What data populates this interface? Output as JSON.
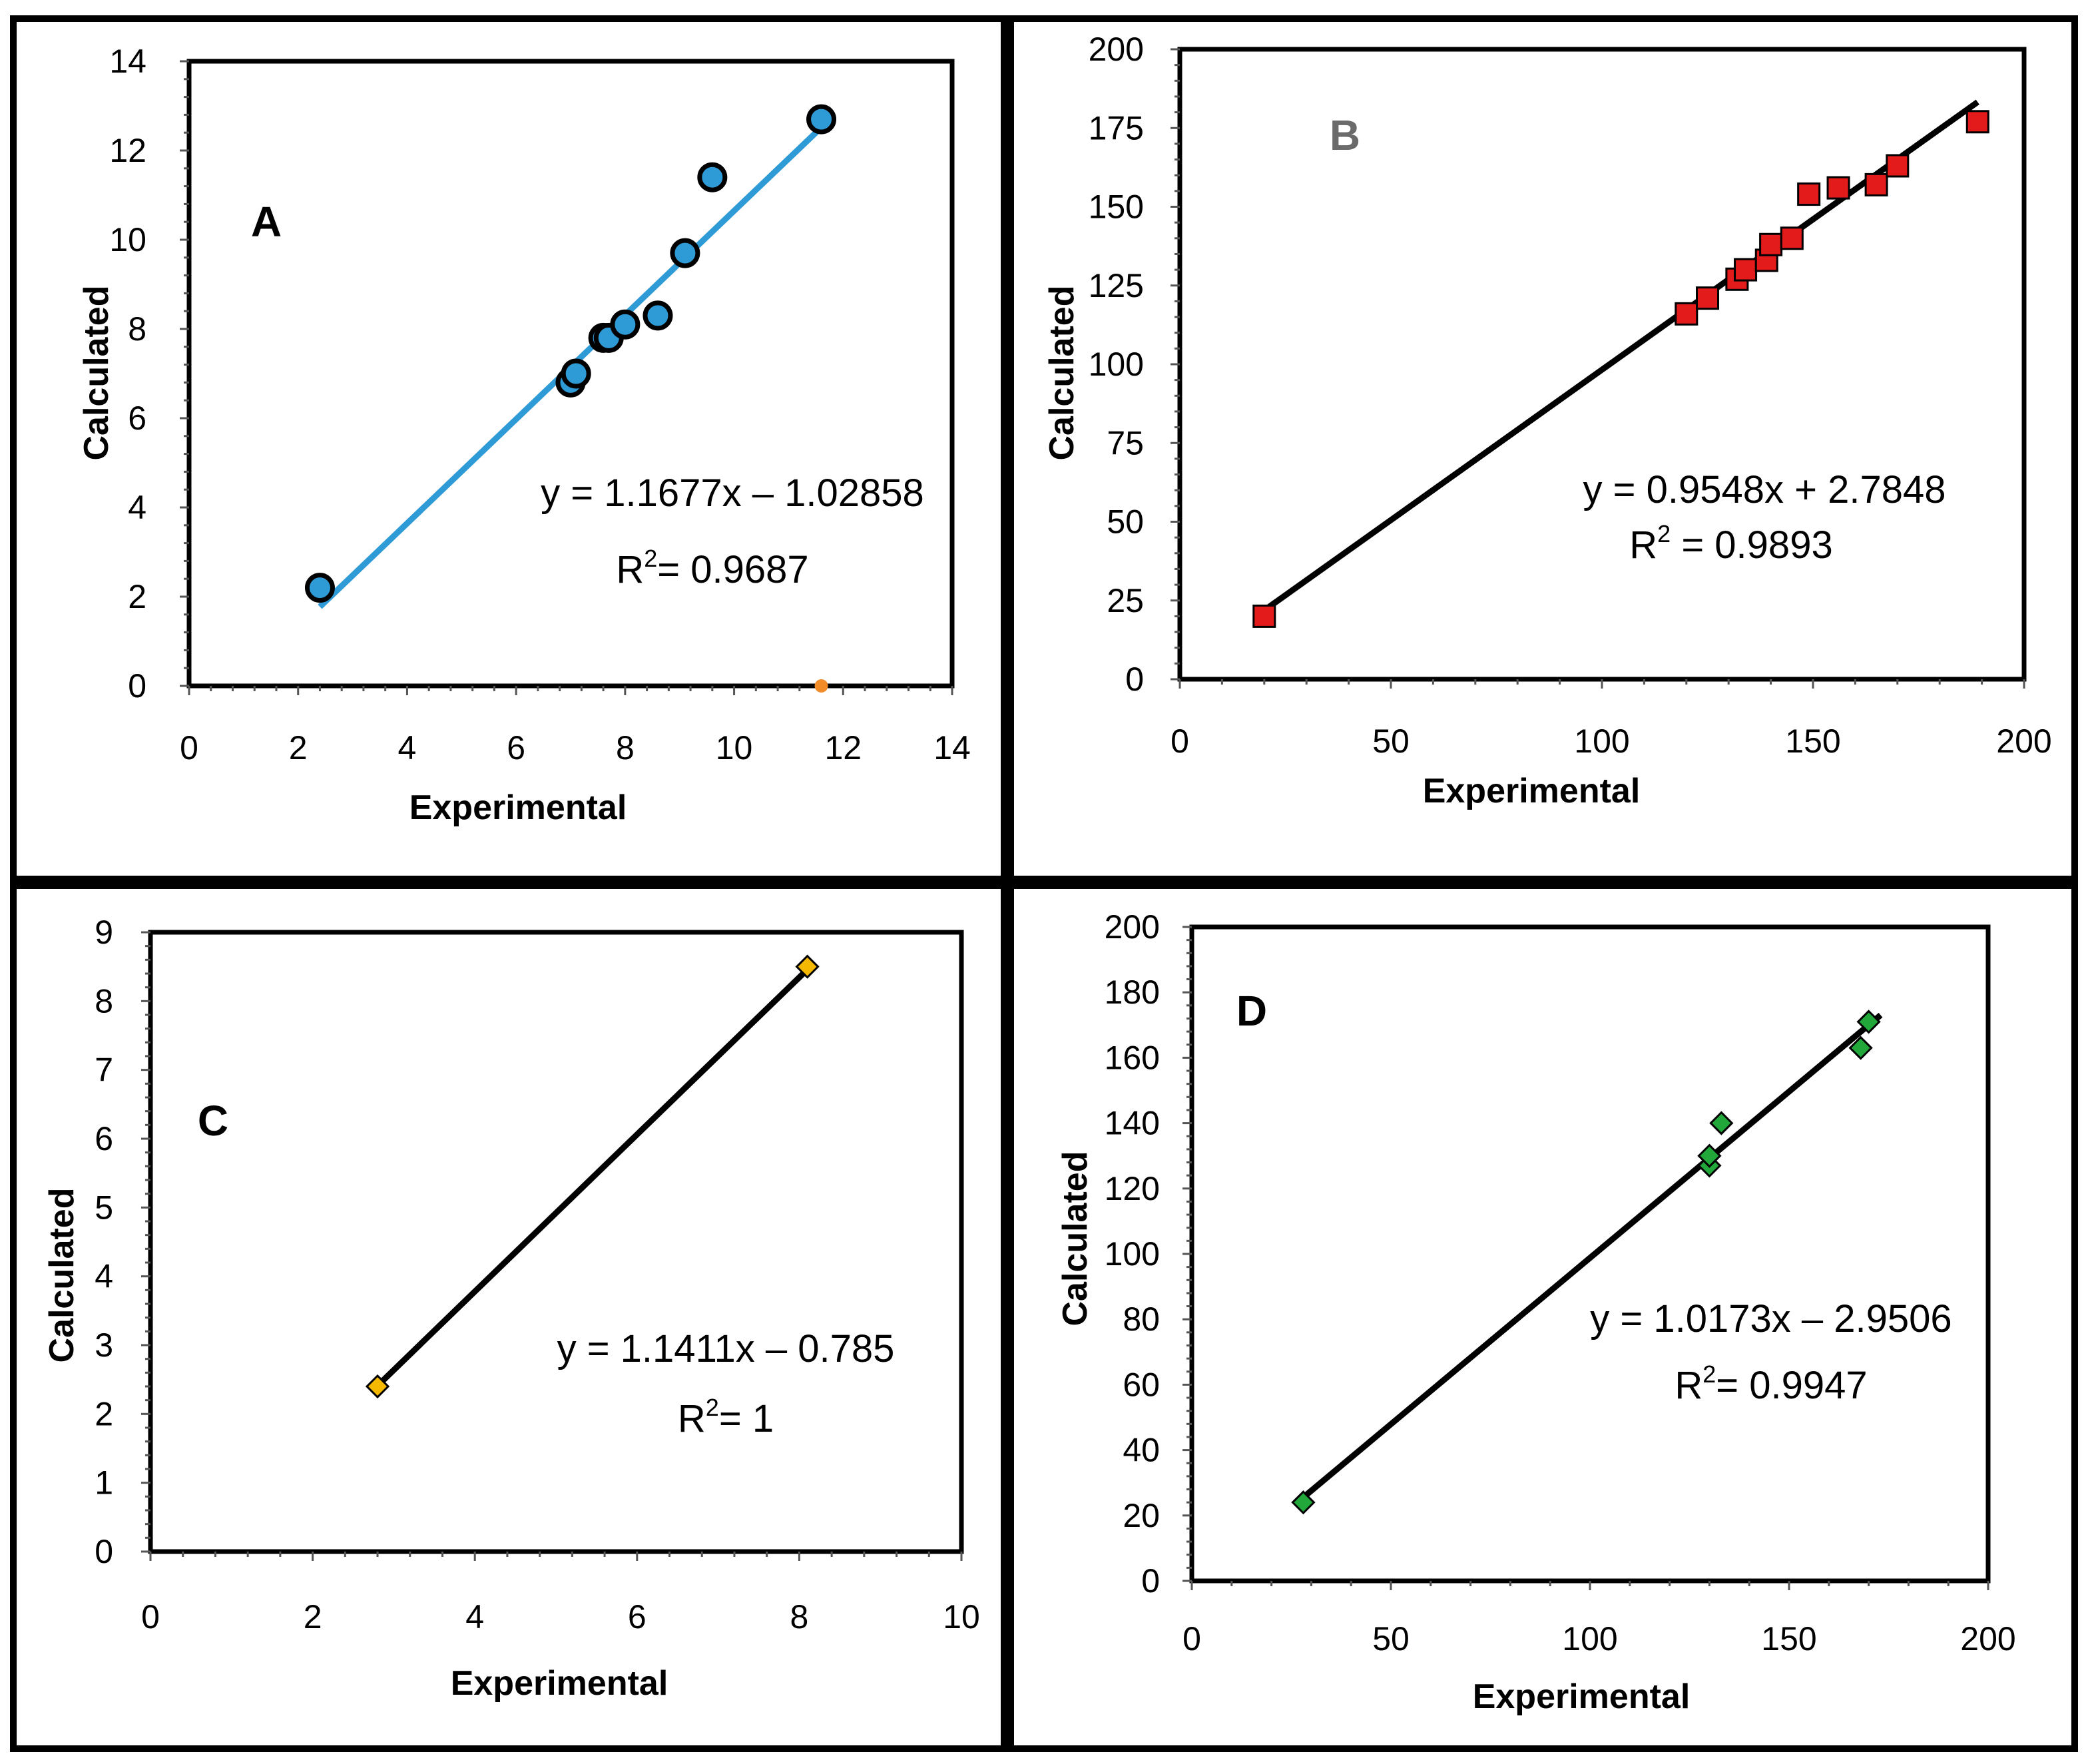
{
  "chart_data": [
    {
      "type": "scatter",
      "panel_label": "A",
      "xlabel": "Experimental",
      "ylabel": "Calculated",
      "xlim": [
        0,
        14
      ],
      "ylim": [
        0,
        14
      ],
      "xticks": [
        0,
        2,
        4,
        6,
        8,
        10,
        12,
        14
      ],
      "yticks": [
        0,
        2,
        4,
        6,
        8,
        10,
        12,
        14
      ],
      "marker": "circle",
      "marker_color": "#2e9ad6",
      "line_color": "#2e9ad6",
      "points": [
        {
          "x": 2.4,
          "y": 2.2
        },
        {
          "x": 7.0,
          "y": 6.8
        },
        {
          "x": 7.1,
          "y": 7.0
        },
        {
          "x": 7.6,
          "y": 7.8
        },
        {
          "x": 7.7,
          "y": 7.8
        },
        {
          "x": 8.0,
          "y": 8.1
        },
        {
          "x": 8.6,
          "y": 8.3
        },
        {
          "x": 9.1,
          "y": 9.7
        },
        {
          "x": 9.6,
          "y": 11.4
        },
        {
          "x": 11.6,
          "y": 12.7
        }
      ],
      "stray_points": [
        {
          "x": 11.6,
          "y": 0,
          "color": "#f28c28"
        }
      ],
      "trendline": {
        "slope": 1.1677,
        "intercept": -1.02858,
        "x_range": [
          2.4,
          11.6
        ]
      },
      "equation": "y = 1.1677x – 1.02858",
      "r2_prefix": "R",
      "r2_value": "= 0.9687"
    },
    {
      "type": "scatter",
      "panel_label": "B",
      "xlabel": "Experimental",
      "ylabel": "Calculated",
      "xlim": [
        0,
        200
      ],
      "ylim": [
        0,
        200
      ],
      "xticks": [
        0,
        50,
        100,
        150,
        200
      ],
      "yticks": [
        0,
        25,
        50,
        75,
        100,
        125,
        150,
        175,
        200
      ],
      "marker": "square",
      "marker_color": "#e31b1b",
      "line_color": "#000000",
      "points": [
        {
          "x": 20,
          "y": 20
        },
        {
          "x": 120,
          "y": 116
        },
        {
          "x": 125,
          "y": 121
        },
        {
          "x": 132,
          "y": 127
        },
        {
          "x": 134,
          "y": 130
        },
        {
          "x": 139,
          "y": 133
        },
        {
          "x": 140,
          "y": 138
        },
        {
          "x": 145,
          "y": 140
        },
        {
          "x": 149,
          "y": 154
        },
        {
          "x": 156,
          "y": 156
        },
        {
          "x": 165,
          "y": 157
        },
        {
          "x": 170,
          "y": 163
        },
        {
          "x": 189,
          "y": 177
        }
      ],
      "trendline": {
        "slope": 0.9548,
        "intercept": 2.7848,
        "x_range": [
          19,
          189
        ]
      },
      "equation": "y = 0.9548x + 2.7848",
      "r2_prefix": "R",
      "r2_value": " = 0.9893"
    },
    {
      "type": "scatter",
      "panel_label": "C",
      "xlabel": "Experimental",
      "ylabel": "Calculated",
      "xlim": [
        0,
        10
      ],
      "ylim": [
        0,
        9
      ],
      "xticks": [
        0,
        2,
        4,
        6,
        8,
        10
      ],
      "yticks": [
        0,
        1,
        2,
        3,
        4,
        5,
        6,
        7,
        8,
        9
      ],
      "marker": "diamond",
      "marker_color": "#f5b800",
      "line_color": "#000000",
      "points": [
        {
          "x": 2.8,
          "y": 2.4
        },
        {
          "x": 8.1,
          "y": 8.5
        }
      ],
      "trendline": {
        "slope": 1.1411,
        "intercept": -0.785,
        "x_range": [
          2.8,
          8.15
        ]
      },
      "equation": "y = 1.1411x – 0.785",
      "r2_prefix": "R",
      "r2_value": "= 1"
    },
    {
      "type": "scatter",
      "panel_label": "D",
      "xlabel": "Experimental",
      "ylabel": "Calculated",
      "xlim": [
        0,
        200
      ],
      "ylim": [
        0,
        200
      ],
      "xticks": [
        0,
        50,
        100,
        150,
        200
      ],
      "yticks": [
        0,
        20,
        40,
        60,
        80,
        100,
        120,
        140,
        160,
        180,
        200
      ],
      "marker": "diamond",
      "marker_color": "#22a83a",
      "line_color": "#000000",
      "points": [
        {
          "x": 28,
          "y": 24
        },
        {
          "x": 130,
          "y": 127
        },
        {
          "x": 130,
          "y": 130
        },
        {
          "x": 133,
          "y": 140
        },
        {
          "x": 168,
          "y": 163
        },
        {
          "x": 170,
          "y": 171
        }
      ],
      "trendline": {
        "slope": 1.0173,
        "intercept": -2.9506,
        "x_range": [
          28,
          173
        ]
      },
      "equation": "y = 1.0173x – 2.9506",
      "r2_prefix": "R",
      "r2_value": "= 0.9947"
    }
  ]
}
